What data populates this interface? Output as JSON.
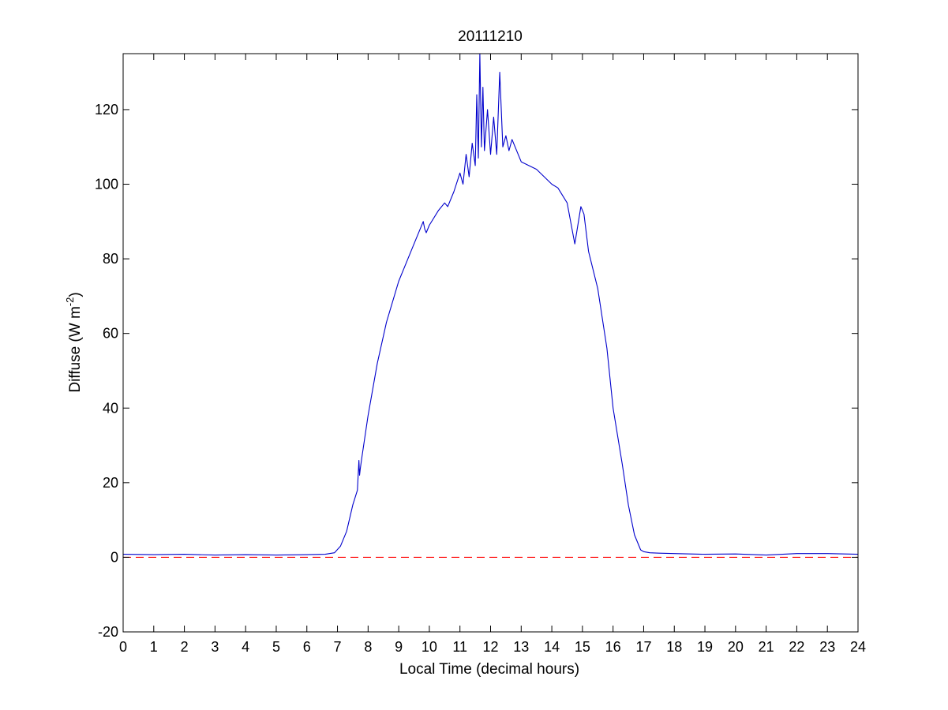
{
  "chart_data": {
    "type": "line",
    "title": "20111210",
    "xlabel": "Local Time (decimal hours)",
    "ylabel_main": "Diffuse (W m",
    "ylabel_sup": "-2",
    "ylabel_tail": ")",
    "xlim": [
      0,
      24
    ],
    "ylim": [
      -20,
      135
    ],
    "xticks": [
      "0",
      "1",
      "2",
      "3",
      "4",
      "5",
      "6",
      "7",
      "8",
      "9",
      "10",
      "11",
      "12",
      "13",
      "14",
      "15",
      "16",
      "17",
      "18",
      "19",
      "20",
      "21",
      "22",
      "23",
      "24"
    ],
    "yticks": [
      "-20",
      "0",
      "20",
      "40",
      "60",
      "80",
      "100",
      "120"
    ],
    "grid": false,
    "series": [
      {
        "color": "#0000cc",
        "x": [
          0,
          1,
          2,
          3,
          4,
          5,
          6,
          6.6,
          6.9,
          7.1,
          7.3,
          7.5,
          7.65,
          7.7,
          7.72,
          7.75,
          7.8,
          8.0,
          8.3,
          8.6,
          9.0,
          9.5,
          9.8,
          9.85,
          9.9,
          10.0,
          10.3,
          10.5,
          10.6,
          10.8,
          11.0,
          11.1,
          11.2,
          11.3,
          11.4,
          11.5,
          11.55,
          11.6,
          11.65,
          11.7,
          11.75,
          11.8,
          11.9,
          12.0,
          12.1,
          12.2,
          12.3,
          12.4,
          12.5,
          12.6,
          12.7,
          13.0,
          13.5,
          14.0,
          14.2,
          14.5,
          14.75,
          14.95,
          15.05,
          15.2,
          15.5,
          15.8,
          16.0,
          16.3,
          16.5,
          16.7,
          16.9,
          17.0,
          17.2,
          17.5,
          18,
          19,
          20,
          21,
          22,
          23,
          24
        ],
        "y": [
          0.8,
          0.7,
          0.8,
          0.6,
          0.7,
          0.6,
          0.7,
          0.8,
          1.2,
          3,
          7,
          14,
          18,
          26,
          22,
          24,
          27,
          38,
          52,
          63,
          74,
          84,
          90,
          88,
          87,
          89,
          93,
          95,
          94,
          98,
          103,
          100,
          108,
          102,
          111,
          105,
          124,
          107,
          135,
          110,
          126,
          109,
          120,
          108,
          118,
          108,
          130,
          110,
          113,
          109,
          112,
          106,
          104,
          100,
          99,
          95,
          84,
          94,
          92,
          82,
          72,
          56,
          40,
          25,
          14,
          6,
          2,
          1.5,
          1.2,
          1.1,
          1.0,
          0.8,
          0.9,
          0.6,
          1.0,
          1.0,
          0.8
        ]
      }
    ],
    "reference_line": {
      "y": 0,
      "color": "#ff0000",
      "style": "dashed"
    }
  }
}
